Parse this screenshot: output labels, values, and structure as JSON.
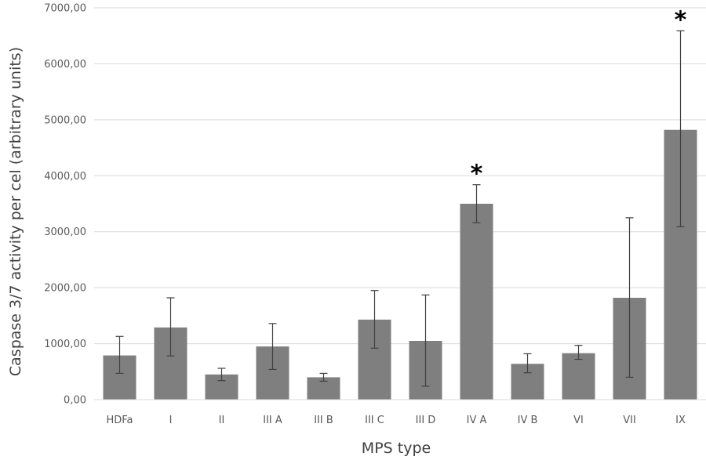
{
  "chart_data": {
    "type": "bar",
    "xlabel": "MPS type",
    "ylabel": "Caspase 3/7 activity per cel (arbitrary units)",
    "ylim": [
      0,
      7000
    ],
    "ytick_step": 1000,
    "ytick_labels": [
      "0,00",
      "1000,00",
      "2000,00",
      "3000,00",
      "4000,00",
      "5000,00",
      "6000,00",
      "7000,00"
    ],
    "grid": true,
    "categories": [
      "HDFa",
      "I",
      "II",
      "III A",
      "III B",
      "III C",
      "III D",
      "IV A",
      "IV B",
      "VI",
      "VII",
      "IX"
    ],
    "values": [
      790,
      1290,
      450,
      950,
      400,
      1430,
      1050,
      3500,
      640,
      830,
      1820,
      4820
    ],
    "error_low": [
      470,
      780,
      340,
      540,
      330,
      920,
      240,
      3160,
      480,
      720,
      400,
      3090
    ],
    "error_high": [
      1130,
      1820,
      560,
      1360,
      470,
      1950,
      1870,
      3840,
      820,
      970,
      3250,
      6590
    ],
    "significance": [
      "",
      "",
      "",
      "",
      "",
      "",
      "",
      "*",
      "",
      "",
      "",
      "*"
    ],
    "bar_color": "#7f7f7f",
    "grid_color": "#d9d9d9",
    "error_color": "#404040"
  }
}
